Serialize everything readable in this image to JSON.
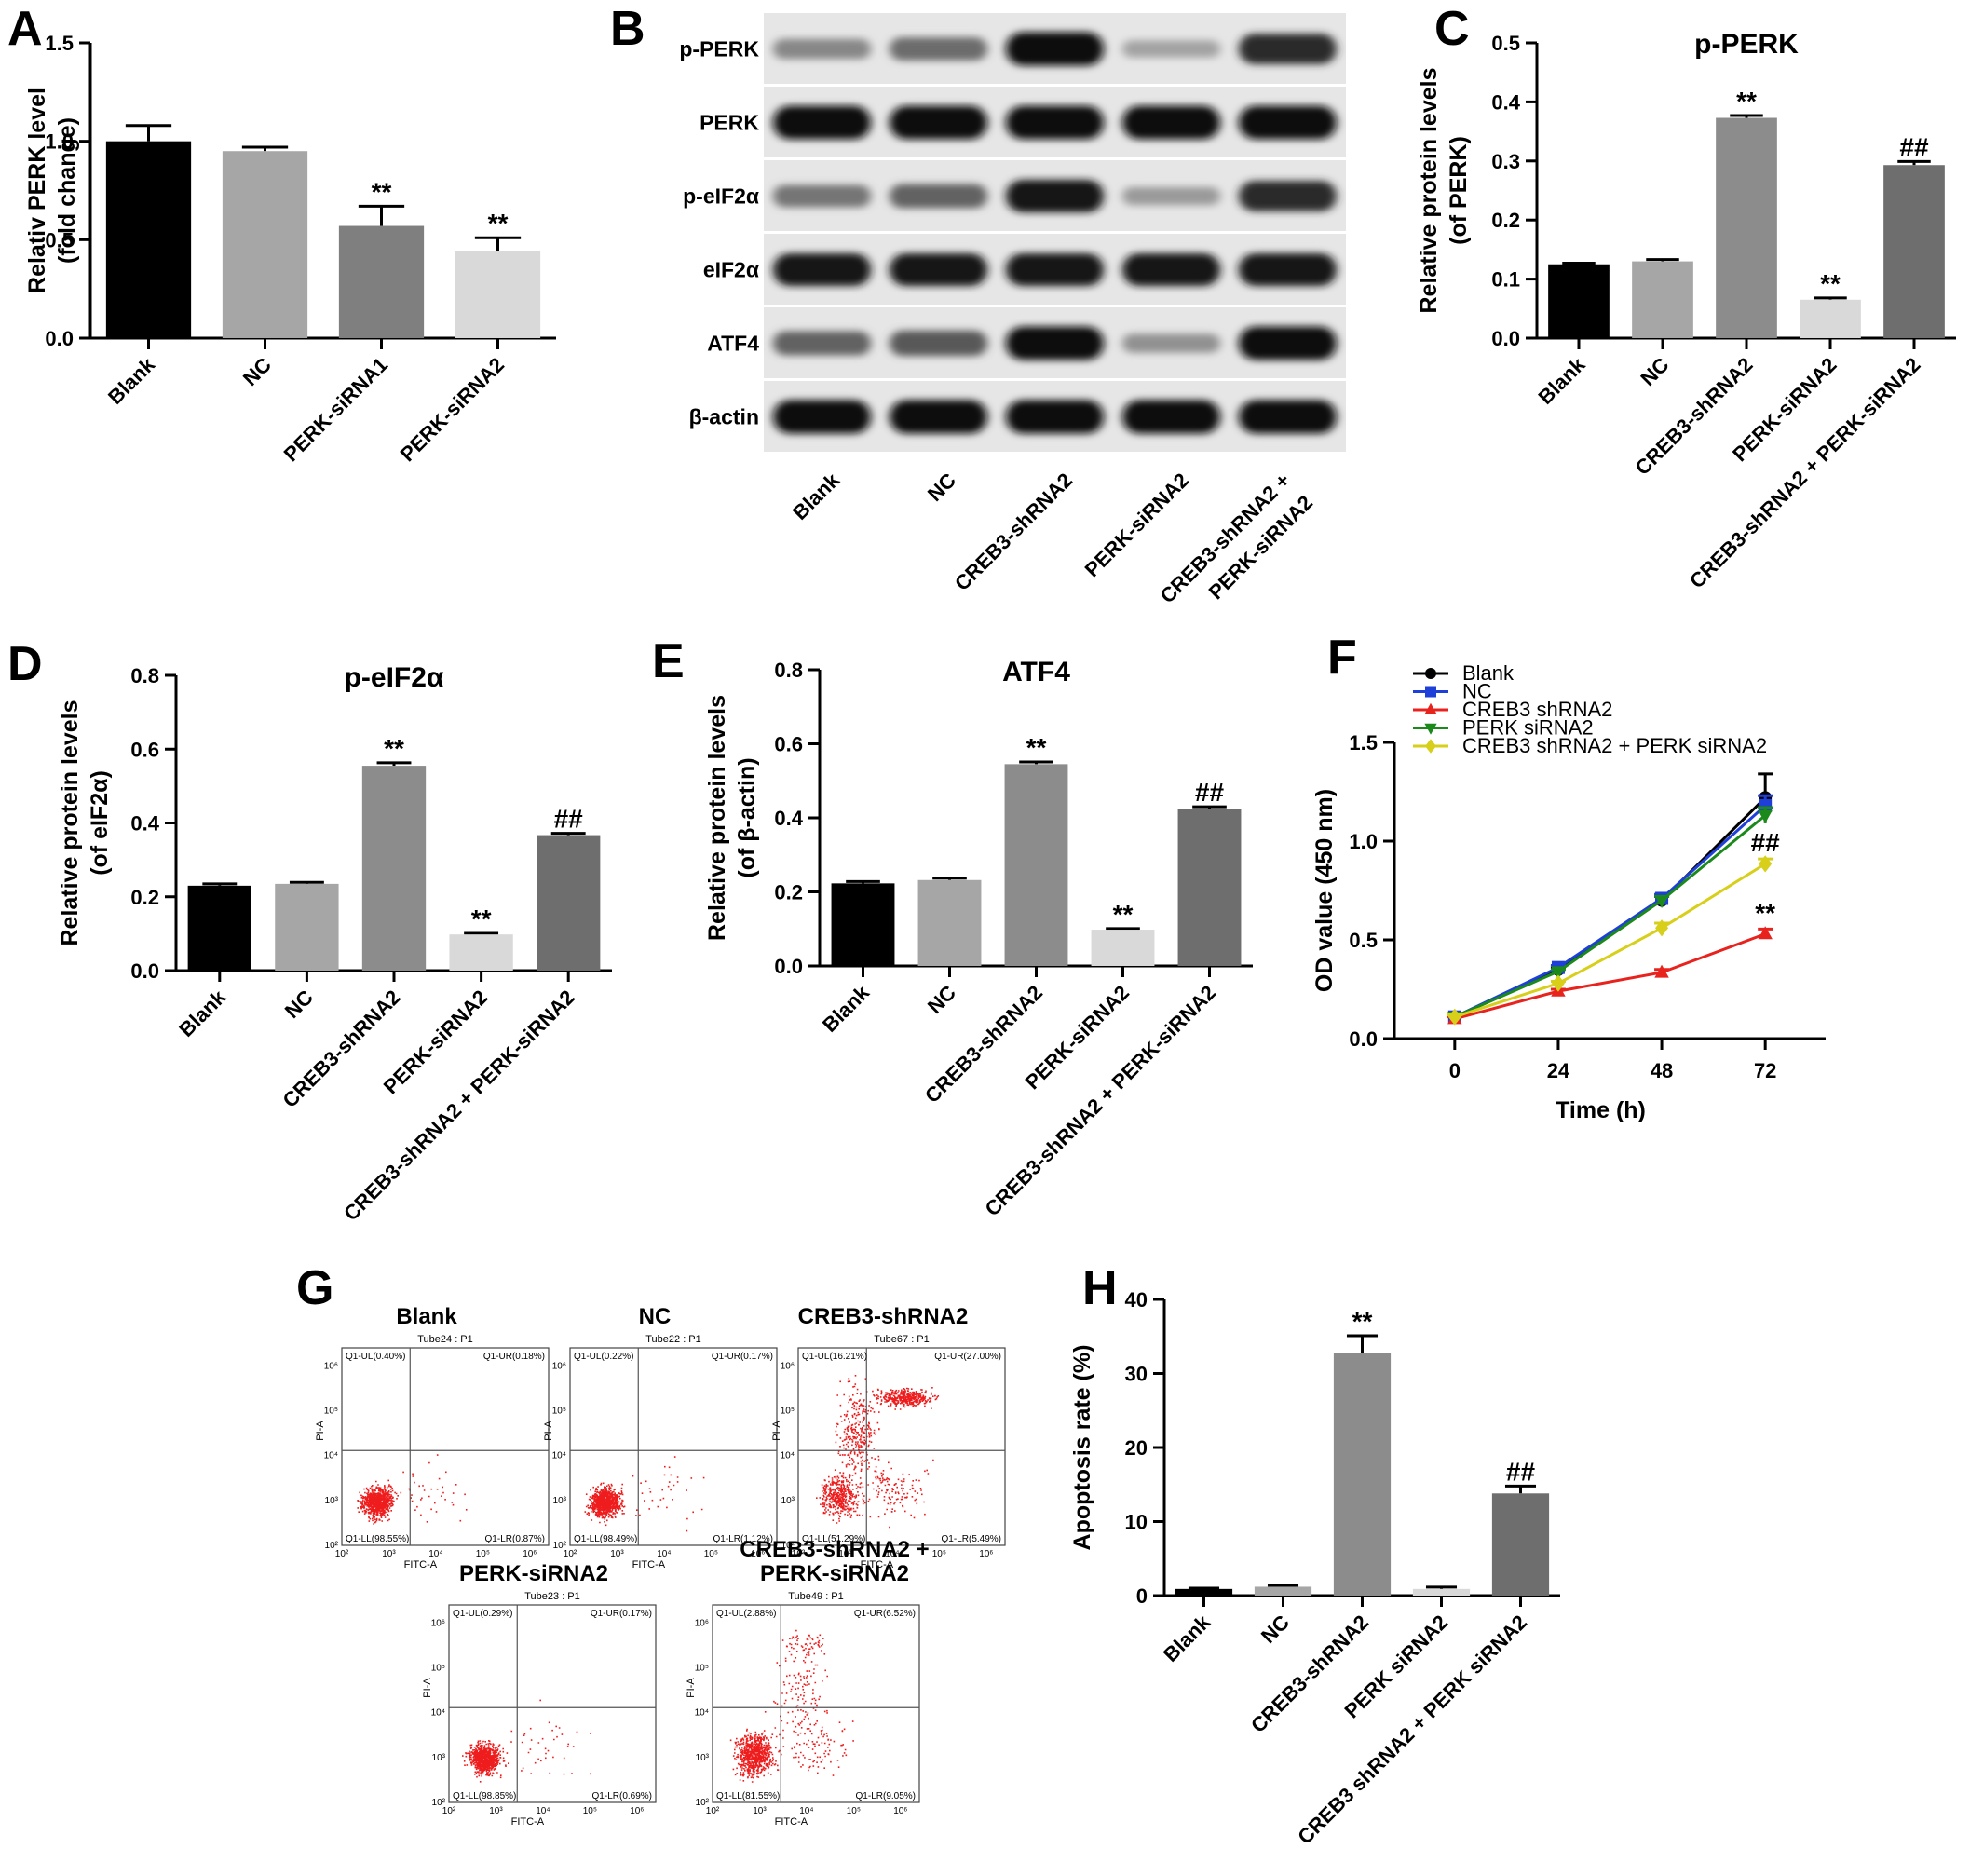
{
  "figure": {
    "panel_labels": [
      "A",
      "B",
      "C",
      "D",
      "E",
      "F",
      "G",
      "H"
    ]
  },
  "chart_data": [
    {
      "id": "A",
      "type": "bar",
      "title": "",
      "ylabel": [
        "Relativ PERK level",
        "(fold change)"
      ],
      "categories": [
        "Blank",
        "NC",
        "PERK-siRNA1",
        "PERK-siRNA2"
      ],
      "values": [
        1.0,
        0.95,
        0.57,
        0.44
      ],
      "errors": [
        0.08,
        0.02,
        0.1,
        0.07
      ],
      "annotations": [
        "",
        "",
        "**",
        "**"
      ],
      "colors": [
        "#000000",
        "#a6a6a6",
        "#7f7f7f",
        "#d9d9d9"
      ],
      "ylim": [
        0,
        1.5
      ],
      "yticks": [
        "0.0",
        "0.5",
        "1.0",
        "1.5"
      ]
    },
    {
      "id": "C",
      "type": "bar",
      "title": "p-PERK",
      "ylabel": [
        "Relative protein levels",
        "(of PERK)"
      ],
      "categories": [
        "Blank",
        "NC",
        "CREB3-shRNA2",
        "PERK-siRNA2",
        "CREB3-shRNA2 + PERK-siRNA2"
      ],
      "values": [
        0.125,
        0.13,
        0.373,
        0.065,
        0.293
      ],
      "errors": [
        0.002,
        0.003,
        0.004,
        0.003,
        0.006
      ],
      "annotations": [
        "",
        "",
        "**",
        "**",
        "##"
      ],
      "colors": [
        "#000000",
        "#a6a6a6",
        "#8c8c8c",
        "#d9d9d9",
        "#6e6e6e"
      ],
      "ylim": [
        0,
        0.5
      ],
      "yticks": [
        "0.0",
        "0.1",
        "0.2",
        "0.3",
        "0.4",
        "0.5"
      ]
    },
    {
      "id": "D",
      "type": "bar",
      "title": "p-eIF2α",
      "ylabel": [
        "Relative protein levels",
        "(of eIF2α)"
      ],
      "categories": [
        "Blank",
        "NC",
        "CREB3-shRNA2",
        "PERK-siRNA2",
        "CREB3-shRNA2 + PERK-siRNA2"
      ],
      "values": [
        0.23,
        0.235,
        0.555,
        0.098,
        0.367
      ],
      "errors": [
        0.005,
        0.004,
        0.008,
        0.003,
        0.005
      ],
      "annotations": [
        "",
        "",
        "**",
        "**",
        "##"
      ],
      "colors": [
        "#000000",
        "#a6a6a6",
        "#8c8c8c",
        "#d9d9d9",
        "#6e6e6e"
      ],
      "ylim": [
        0,
        0.8
      ],
      "yticks": [
        "0.0",
        "0.2",
        "0.4",
        "0.6",
        "0.8"
      ]
    },
    {
      "id": "E",
      "type": "bar",
      "title": "ATF4",
      "ylabel": [
        "Relative protein levels",
        "(of β-actin)"
      ],
      "categories": [
        "Blank",
        "NC",
        "CREB3-shRNA2",
        "PERK-siRNA2",
        "CREB3-shRNA2 + PERK-siRNA2"
      ],
      "values": [
        0.223,
        0.232,
        0.545,
        0.098,
        0.425
      ],
      "errors": [
        0.005,
        0.005,
        0.006,
        0.003,
        0.005
      ],
      "annotations": [
        "",
        "",
        "**",
        "**",
        "##"
      ],
      "colors": [
        "#000000",
        "#a6a6a6",
        "#8c8c8c",
        "#d9d9d9",
        "#6e6e6e"
      ],
      "ylim": [
        0,
        0.8
      ],
      "yticks": [
        "0.0",
        "0.2",
        "0.4",
        "0.6",
        "0.8"
      ]
    },
    {
      "id": "F",
      "type": "line",
      "title": "",
      "xlabel": "Time (h)",
      "ylabel": [
        "OD value (450 nm)"
      ],
      "x": [
        0,
        24,
        48,
        72
      ],
      "xticks": [
        "0",
        "24",
        "48",
        "72"
      ],
      "xlim": [
        -14,
        86
      ],
      "ylim": [
        0,
        1.5
      ],
      "yticks": [
        "0.0",
        "0.5",
        "1.0",
        "1.5"
      ],
      "series": [
        {
          "name": "Blank",
          "color": "#000000",
          "marker": "circle",
          "values": [
            0.11,
            0.35,
            0.7,
            1.22
          ],
          "errors": [
            0.01,
            0.01,
            0.02,
            0.12
          ]
        },
        {
          "name": "NC",
          "color": "#1f3fd9",
          "marker": "square",
          "values": [
            0.11,
            0.36,
            0.71,
            1.18
          ],
          "errors": [
            0.01,
            0.01,
            0.02,
            0.05
          ]
        },
        {
          "name": "CREB3 shRNA2",
          "color": "#e8231e",
          "marker": "triangle-up",
          "values": [
            0.1,
            0.24,
            0.335,
            0.53
          ],
          "errors": [
            0.01,
            0.01,
            0.015,
            0.025
          ],
          "annotation": "**"
        },
        {
          "name": "PERK siRNA2",
          "color": "#1b8a1b",
          "marker": "triangle-down",
          "values": [
            0.11,
            0.34,
            0.7,
            1.13
          ],
          "errors": [
            0.01,
            0.01,
            0.02,
            0.04
          ]
        },
        {
          "name": "CREB3 shRNA2 + PERK siRNA2",
          "color": "#d7cf1a",
          "marker": "diamond",
          "values": [
            0.11,
            0.28,
            0.56,
            0.885
          ],
          "errors": [
            0.01,
            0.01,
            0.025,
            0.025
          ],
          "annotation": "##"
        }
      ]
    },
    {
      "id": "H",
      "type": "bar",
      "title": "",
      "ylabel": [
        "Apoptosis rate (%)"
      ],
      "categories": [
        "Blank",
        "NC",
        "CREB3-shRNA2",
        "PERK siRNA2",
        "CREB3 shRNA2 + PERK siRNA2"
      ],
      "values": [
        0.9,
        1.2,
        32.8,
        0.9,
        13.8
      ],
      "errors": [
        0.1,
        0.15,
        2.3,
        0.25,
        1.0
      ],
      "annotations": [
        "",
        "",
        "**",
        "",
        "##"
      ],
      "colors": [
        "#000000",
        "#a6a6a6",
        "#8c8c8c",
        "#d9d9d9",
        "#6e6e6e"
      ],
      "ylim": [
        0,
        40
      ],
      "yticks": [
        "0",
        "10",
        "20",
        "30",
        "40"
      ]
    }
  ],
  "western_blot": {
    "rows": [
      "p-PERK",
      "PERK",
      "p-eIF2α",
      "eIF2α",
      "ATF4",
      "β-actin"
    ],
    "lanes": [
      "Blank",
      "NC",
      "CREB3-shRNA2",
      "PERK-siRNA2",
      "CREB3-shRNA2 + PERK-siRNA2"
    ],
    "last_lane_lines": [
      "CREB3-shRNA2 +",
      "PERK-siRNA2"
    ],
    "intensity": [
      [
        0.35,
        0.5,
        1.0,
        0.2,
        0.85
      ],
      [
        1.0,
        1.0,
        1.0,
        1.0,
        1.0
      ],
      [
        0.45,
        0.55,
        0.95,
        0.25,
        0.85
      ],
      [
        0.95,
        0.95,
        0.95,
        0.95,
        0.95
      ],
      [
        0.55,
        0.6,
        1.0,
        0.3,
        1.0
      ],
      [
        1.0,
        1.0,
        1.0,
        1.0,
        1.0
      ]
    ]
  },
  "flow_cytometry": {
    "x_axis_label": "FITC-A",
    "y_axis_label": "PI-A",
    "panels": [
      {
        "name": "Blank",
        "tube": "Tube24 : P1",
        "ul": "Q1-UL(0.40%)",
        "ur": "Q1-UR(0.18%)",
        "ll": "Q1-LL(98.55%)",
        "lr": "Q1-LR(0.87%)",
        "pattern": "normal"
      },
      {
        "name": "NC",
        "tube": "Tube22 : P1",
        "ul": "Q1-UL(0.22%)",
        "ur": "Q1-UR(0.17%)",
        "ll": "Q1-LL(98.49%)",
        "lr": "Q1-LR(1.12%)",
        "pattern": "normal"
      },
      {
        "name": "CREB3-shRNA2",
        "tube": "Tube67 : P1",
        "ul": "Q1-UL(16.21%)",
        "ur": "Q1-UR(27.00%)",
        "ll": "Q1-LL(51.29%)",
        "lr": "Q1-LR(5.49%)",
        "pattern": "apoptotic"
      },
      {
        "name": "PERK-siRNA2",
        "tube": "Tube23 : P1",
        "ul": "Q1-UL(0.29%)",
        "ur": "Q1-UR(0.17%)",
        "ll": "Q1-LL(98.85%)",
        "lr": "Q1-LR(0.69%)",
        "pattern": "normal"
      },
      {
        "name_lines": [
          "CREB3-shRNA2 +",
          "PERK-siRNA2"
        ],
        "tube": "Tube49 : P1",
        "ul": "Q1-UL(2.88%)",
        "ur": "Q1-UR(6.52%)",
        "ll": "Q1-LL(81.55%)",
        "lr": "Q1-LR(9.05%)",
        "pattern": "mixed"
      }
    ]
  }
}
